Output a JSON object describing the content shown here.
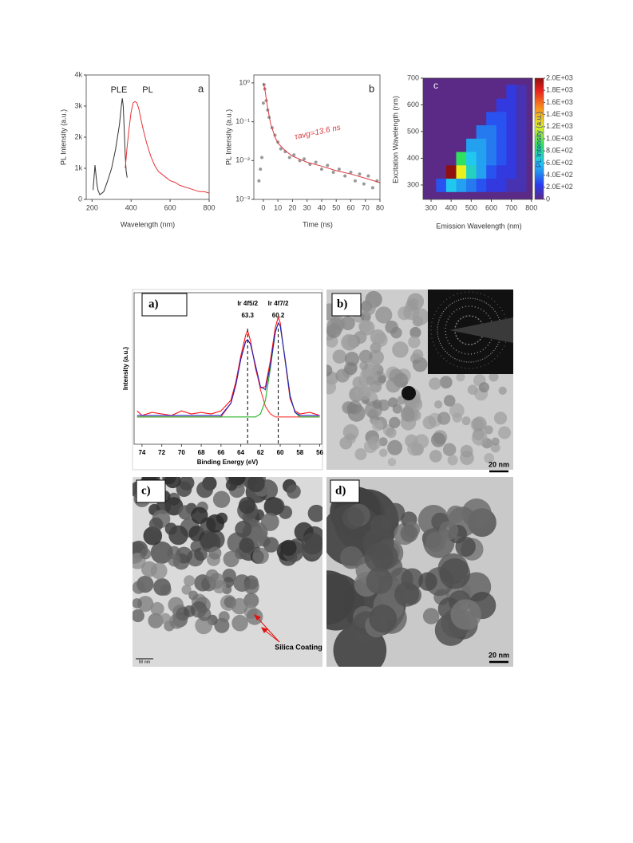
{
  "chart_data": [
    {
      "type": "line",
      "panel_label": "a",
      "x_label": "Wavelength (nm)",
      "y_label": "PL Intensity (a.u.)",
      "xlim": [
        170,
        800
      ],
      "xticks": [
        200,
        400,
        600,
        800
      ],
      "ylim": [
        0,
        4000
      ],
      "yticks": [
        0,
        {
          "value": 1000,
          "label": "1k"
        },
        {
          "value": 2000,
          "label": "2k"
        },
        {
          "value": 3000,
          "label": "3k"
        },
        {
          "value": 4000,
          "label": "4k"
        }
      ],
      "series": [
        {
          "name": "PLE",
          "color": "#333333",
          "x": [
            205,
            210,
            215,
            220,
            225,
            230,
            240,
            260,
            280,
            300,
            320,
            340,
            350,
            355,
            360,
            365,
            370,
            375,
            380
          ],
          "values": [
            300,
            700,
            1100,
            800,
            500,
            300,
            150,
            250,
            600,
            1000,
            1600,
            2400,
            3000,
            3250,
            3000,
            2200,
            1400,
            900,
            700
          ]
        },
        {
          "name": "PL",
          "color": "#e8343a",
          "x": [
            370,
            380,
            390,
            400,
            410,
            420,
            430,
            440,
            450,
            460,
            480,
            500,
            520,
            540,
            560,
            580,
            600,
            625,
            650,
            675,
            700,
            725,
            750,
            775,
            800
          ],
          "values": [
            1000,
            1700,
            2300,
            2800,
            3100,
            3150,
            3100,
            2900,
            2600,
            2300,
            1800,
            1400,
            1100,
            900,
            800,
            700,
            600,
            550,
            450,
            400,
            350,
            300,
            250,
            250,
            200
          ]
        }
      ]
    },
    {
      "type": "line",
      "panel_label": "b",
      "x_label": "Time (ns)",
      "y_label": "PL Intensity (a.u.)",
      "log_y": true,
      "annotation": "τavg=13.6 ns",
      "xlim": [
        -6.5,
        80
      ],
      "xticks": [
        0,
        10,
        20,
        30,
        40,
        50,
        60,
        70,
        80
      ],
      "ylim": [
        0.001,
        1.6
      ],
      "yticks": [
        {
          "value": 0.001,
          "label": "10⁻³"
        },
        {
          "value": 0.01,
          "label": "10⁻²"
        },
        {
          "value": 0.1,
          "label": "10⁻¹"
        },
        {
          "value": 1,
          "label": "10⁰"
        }
      ],
      "series": [
        {
          "mode": "markers",
          "color": "#999999",
          "x": [
            -3,
            -2,
            -1,
            0,
            0.5,
            1,
            2,
            3,
            4,
            6,
            8,
            10,
            12,
            15,
            18,
            21,
            25,
            28,
            32,
            36,
            40,
            44,
            48,
            52,
            56,
            60,
            63,
            66,
            69,
            72,
            75,
            78
          ],
          "values": [
            0.003,
            0.006,
            0.012,
            0.3,
            0.9,
            0.7,
            0.35,
            0.2,
            0.13,
            0.07,
            0.045,
            0.03,
            0.02,
            0.017,
            0.012,
            0.014,
            0.01,
            0.011,
            0.008,
            0.009,
            0.006,
            0.0075,
            0.005,
            0.006,
            0.004,
            0.005,
            0.003,
            0.0045,
            0.0025,
            0.004,
            0.002,
            0.003
          ]
        },
        {
          "mode": "line",
          "color": "#d9393e",
          "x": [
            0,
            1,
            2,
            3,
            5,
            8,
            10,
            15,
            20,
            30,
            40,
            50,
            60,
            70,
            80
          ],
          "values": [
            1,
            0.7,
            0.4,
            0.22,
            0.09,
            0.04,
            0.028,
            0.018,
            0.013,
            0.009,
            0.0072,
            0.0055,
            0.0045,
            0.0035,
            0.0027
          ]
        }
      ]
    },
    {
      "type": "heatmap",
      "panel_label": "c",
      "x_label": "Emission Wavelength (nm)",
      "y_label": "Excitation Wavelength (nm)",
      "xlim": [
        260,
        805
      ],
      "xticks": [
        300,
        400,
        500,
        600,
        700,
        800
      ],
      "ylim": [
        246,
        700
      ],
      "yticks": [
        300,
        400,
        500,
        600,
        700
      ],
      "x": [
        300,
        350,
        400,
        450,
        500,
        550,
        600,
        650,
        700,
        750,
        800
      ],
      "y": [
        300,
        350,
        400,
        450,
        500,
        550,
        600,
        650
      ],
      "z": [
        [
          0,
          300,
          600,
          500,
          400,
          300,
          200,
          200,
          100,
          100,
          0
        ],
        [
          0,
          0,
          2000,
          1200,
          700,
          500,
          300,
          200,
          200,
          100,
          0
        ],
        [
          0,
          0,
          0,
          900,
          600,
          500,
          400,
          300,
          200,
          100,
          0
        ],
        [
          0,
          0,
          0,
          0,
          500,
          500,
          400,
          300,
          200,
          100,
          0
        ],
        [
          0,
          0,
          0,
          0,
          0,
          400,
          400,
          300,
          200,
          100,
          0
        ],
        [
          0,
          0,
          0,
          0,
          0,
          0,
          300,
          300,
          200,
          100,
          0
        ],
        [
          0,
          0,
          0,
          0,
          0,
          0,
          0,
          200,
          200,
          100,
          0
        ],
        [
          0,
          0,
          0,
          0,
          0,
          0,
          0,
          0,
          200,
          100,
          0
        ]
      ],
      "clabel": "PL Intensity (a.u.)",
      "clim": [
        0,
        2000
      ],
      "cticks": [
        0,
        {
          "value": 200,
          "label": "2.0E+02"
        },
        {
          "value": 400,
          "label": "4.0E+02"
        },
        {
          "value": 600,
          "label": "6.0E+02"
        },
        {
          "value": 800,
          "label": "8.0E+02"
        },
        {
          "value": 1000,
          "label": "1.0E+03"
        },
        {
          "value": 1200,
          "label": "1.2E+03"
        },
        {
          "value": 1400,
          "label": "1.4E+03"
        },
        {
          "value": 1600,
          "label": "1.6E+03"
        },
        {
          "value": 1800,
          "label": "1.8E+03"
        },
        {
          "value": 2000,
          "label": "2.0E+03"
        }
      ]
    },
    {
      "type": "line",
      "panel_label": "a)",
      "x_label": "Binding Energy (eV)",
      "y_label": "Intensity (a.u.)",
      "xlim": [
        74.8,
        55.8
      ],
      "xticks": [
        74,
        72,
        70,
        68,
        66,
        64,
        62,
        60,
        58,
        56
      ],
      "ylim": [
        0,
        100
      ],
      "peaks": [
        {
          "label": "Ir 4f5/2",
          "value": 63.3
        },
        {
          "label": "Ir 4f7/2",
          "value": 60.2
        }
      ],
      "series": [
        {
          "mode": "line",
          "color": "#ff1010",
          "x": [
            74.5,
            74,
            73,
            72,
            71,
            70,
            69,
            68,
            67,
            66,
            65,
            64.5,
            64,
            63.5,
            63.3,
            63,
            62.5,
            62,
            61.5,
            61,
            60.5,
            60.2,
            60,
            59.5,
            59,
            58.5,
            58,
            57,
            56
          ],
          "values": [
            22,
            19,
            21,
            20,
            19,
            22,
            20,
            21,
            20,
            22,
            29,
            41,
            58,
            72,
            75,
            68,
            50,
            37,
            38,
            55,
            77,
            84,
            80,
            55,
            30,
            22,
            20,
            21,
            19
          ]
        },
        {
          "mode": "line",
          "color": "#ff3030",
          "x": [
            74.5,
            74,
            73,
            72,
            71,
            70,
            69,
            68,
            67,
            66,
            65,
            64.5,
            64,
            63.5,
            63.3,
            63,
            62.5,
            62,
            61.5,
            61,
            60.5,
            60.2,
            60,
            59.5,
            59,
            58.5,
            58,
            57,
            56
          ],
          "values": [
            18,
            18,
            18,
            18,
            18,
            18,
            18,
            18,
            18,
            18,
            27,
            39,
            56,
            68,
            69,
            66,
            52,
            36,
            25,
            20,
            18,
            18,
            18,
            18,
            18,
            18,
            18,
            18,
            18
          ]
        },
        {
          "mode": "line",
          "color": "#22b022",
          "x": [
            74.5,
            74,
            73,
            72,
            71,
            70,
            69,
            68,
            67,
            66,
            65,
            64.5,
            64,
            63.5,
            63.3,
            63,
            62.5,
            62,
            61.5,
            61,
            60.5,
            60.2,
            60,
            59.5,
            59,
            58.5,
            58,
            57,
            56
          ],
          "values": [
            18,
            18,
            18,
            18,
            18,
            18,
            18,
            18,
            18,
            18,
            18,
            18,
            18,
            18,
            18,
            18,
            18,
            20,
            29,
            50,
            74,
            80,
            78,
            56,
            32,
            21,
            18,
            18,
            18
          ]
        },
        {
          "mode": "line",
          "color": "#2020c0",
          "x": [
            74.5,
            74,
            73,
            72,
            71,
            70,
            69,
            68,
            67,
            66,
            65,
            64.5,
            64,
            63.5,
            63.3,
            63,
            62.5,
            62,
            61.5,
            61,
            60.5,
            60.2,
            60,
            59.5,
            59,
            58.5,
            58,
            57,
            56
          ],
          "values": [
            19,
            19,
            19,
            19,
            19,
            19,
            19,
            19,
            19,
            19,
            27,
            39,
            56,
            68,
            69,
            66,
            52,
            38,
            36,
            52,
            74,
            80,
            78,
            56,
            32,
            21,
            19,
            19,
            19
          ]
        }
      ]
    }
  ],
  "tem_panels": [
    {
      "label": "b)",
      "scale": "20 nm"
    },
    {
      "label": "c)",
      "scale": "50 nm",
      "annotation": "Silica Coating"
    },
    {
      "label": "d)",
      "scale": "20 nm"
    }
  ]
}
